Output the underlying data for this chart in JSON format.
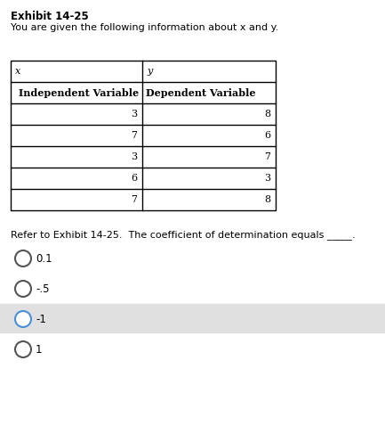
{
  "exhibit_title": "Exhibit 14-25",
  "intro_text": "You are given the following information about x and y.",
  "col_headers_row2": [
    "Independent Variable",
    "Dependent Variable"
  ],
  "table_data": [
    [
      3,
      8
    ],
    [
      7,
      6
    ],
    [
      3,
      7
    ],
    [
      6,
      3
    ],
    [
      7,
      8
    ]
  ],
  "question_text": "Refer to Exhibit 14-25.  The coefficient of determination equals _____.",
  "options": [
    "0.1",
    "-.5",
    "-1",
    "1"
  ],
  "selected_option_index": 2,
  "selected_option_color": "#4a90d9",
  "selected_bg_color": "#e0e0e0",
  "background_color": "#ffffff",
  "font_size_title": 8.5,
  "font_size_body": 8.0,
  "font_size_table": 8.0
}
